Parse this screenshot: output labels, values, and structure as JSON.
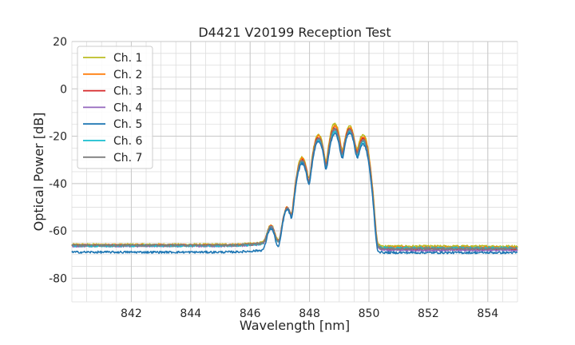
{
  "chart_data": {
    "type": "line",
    "title": "D4421 V20199 Reception Test",
    "xlabel": "Wavelength [nm]",
    "ylabel": "Optical Power [dB]",
    "xlim": [
      840,
      855
    ],
    "ylim": [
      -90,
      20
    ],
    "xticks": [
      842,
      844,
      846,
      848,
      850,
      852,
      854
    ],
    "yticks": [
      -80,
      -60,
      -40,
      -20,
      0,
      20
    ],
    "x_minor_step": 0.5,
    "y_minor_step": 5,
    "grid": true,
    "legend_position": "top-left",
    "series": [
      {
        "name": "Ch. 1",
        "color": "#bcbd22",
        "baseline_left": -65.8,
        "baseline_right": -66.5,
        "peak_offset": 1.2
      },
      {
        "name": "Ch. 2",
        "color": "#ff7f0e",
        "baseline_left": -66.0,
        "baseline_right": -67.0,
        "peak_offset": 0.6
      },
      {
        "name": "Ch. 3",
        "color": "#d62728",
        "baseline_left": -66.2,
        "baseline_right": -67.8,
        "peak_offset": 0.0
      },
      {
        "name": "Ch. 4",
        "color": "#9467bd",
        "baseline_left": -66.4,
        "baseline_right": -68.2,
        "peak_offset": -0.6
      },
      {
        "name": "Ch. 5",
        "color": "#1f77b4",
        "baseline_left": -69.0,
        "baseline_right": -69.2,
        "peak_offset": -1.6
      },
      {
        "name": "Ch. 6",
        "color": "#17becf",
        "baseline_left": -66.3,
        "baseline_right": -67.2,
        "peak_offset": -1.0
      },
      {
        "name": "Ch. 7",
        "color": "#7f7f7f",
        "baseline_left": -66.1,
        "baseline_right": -67.5,
        "peak_offset": -0.3
      }
    ],
    "peaks": [
      {
        "x": 846.7,
        "y": -59
      },
      {
        "x": 847.25,
        "y": -50.5
      },
      {
        "x": 847.75,
        "y": -30
      },
      {
        "x": 848.3,
        "y": -20.5
      },
      {
        "x": 848.85,
        "y": -16.5
      },
      {
        "x": 849.35,
        "y": -17
      },
      {
        "x": 849.8,
        "y": -21
      }
    ]
  }
}
